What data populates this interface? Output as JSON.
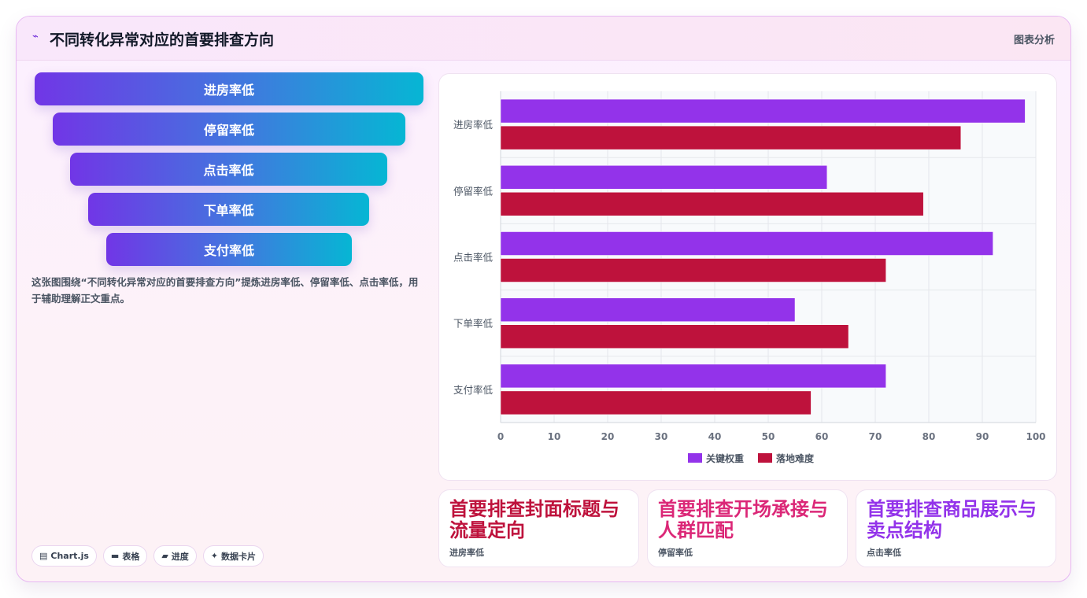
{
  "header": {
    "icon": "chart-trend-icon",
    "title": "不同转化异常对应的首要排查方向",
    "tag": "图表分析"
  },
  "funnel": {
    "items": [
      "进房率低",
      "停留率低",
      "点击率低",
      "下单率低",
      "支付率低"
    ]
  },
  "description": "这张图围绕“不同转化异常对应的首要排查方向”提炼进房率低、停留率低、点击率低，用于辅助理解正文重点。",
  "chips": [
    {
      "icon": "chart-icon",
      "glyph": "▤",
      "label": "Chart.js"
    },
    {
      "icon": "table-icon",
      "glyph": "▬",
      "label": "表格"
    },
    {
      "icon": "progress-icon",
      "glyph": "▰",
      "label": "进度"
    },
    {
      "icon": "sparkle-icon",
      "glyph": "✦",
      "label": "数据卡片"
    }
  ],
  "chart_data": {
    "type": "bar",
    "orientation": "horizontal",
    "categories": [
      "进房率低",
      "停留率低",
      "点击率低",
      "下单率低",
      "支付率低"
    ],
    "series": [
      {
        "name": "关键权重",
        "color": "#9333ea",
        "values": [
          98,
          61,
          92,
          55,
          72
        ]
      },
      {
        "name": "落地难度",
        "color": "#be123c",
        "values": [
          86,
          79,
          72,
          65,
          58
        ]
      }
    ],
    "xlim": [
      0,
      100
    ],
    "xticks": [
      0,
      10,
      20,
      30,
      40,
      50,
      60,
      70,
      80,
      90,
      100
    ],
    "grid": true,
    "legend": "bottom"
  },
  "stats": [
    {
      "value": "首要排查封面标题与流量定向",
      "label": "进房率低",
      "color": "#be123c"
    },
    {
      "value": "首要排查开场承接与人群匹配",
      "label": "停留率低",
      "color": "#db2777"
    },
    {
      "value": "首要排查商品展示与卖点结构",
      "label": "点击率低",
      "color": "#9333ea"
    }
  ]
}
